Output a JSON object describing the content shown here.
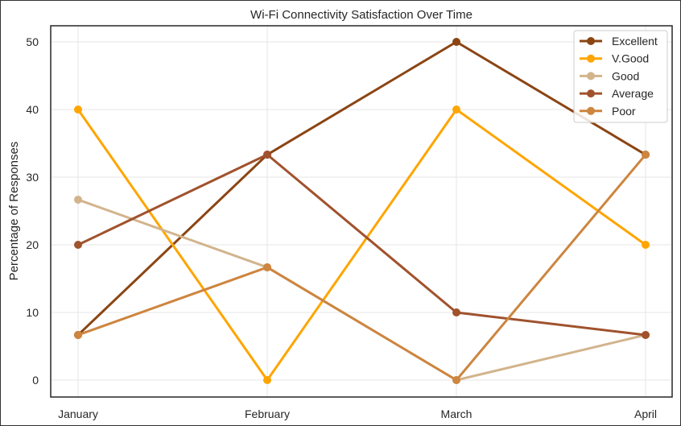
{
  "chart_data": {
    "type": "line",
    "title": "Wi-Fi Connectivity Satisfaction Over Time",
    "xlabel": "",
    "ylabel": "Percentage of Responses",
    "categories": [
      "January",
      "February",
      "March",
      "April"
    ],
    "ylim": [
      0,
      50
    ],
    "yticks": [
      0,
      10,
      20,
      30,
      40,
      50
    ],
    "grid": true,
    "legend_position": "top-right",
    "series": [
      {
        "name": "Excellent",
        "color": "#8B4513",
        "values": [
          6.67,
          33.33,
          50.0,
          33.33
        ]
      },
      {
        "name": "V.Good",
        "color": "#FFA500",
        "values": [
          40.0,
          0.0,
          40.0,
          20.0
        ]
      },
      {
        "name": "Good",
        "color": "#D2B48C",
        "values": [
          26.67,
          16.67,
          0.0,
          6.67
        ]
      },
      {
        "name": "Average",
        "color": "#A0522D",
        "values": [
          20.0,
          33.33,
          10.0,
          6.67
        ]
      },
      {
        "name": "Poor",
        "color": "#CD853F",
        "values": [
          6.67,
          16.67,
          0.0,
          33.33
        ]
      }
    ]
  }
}
